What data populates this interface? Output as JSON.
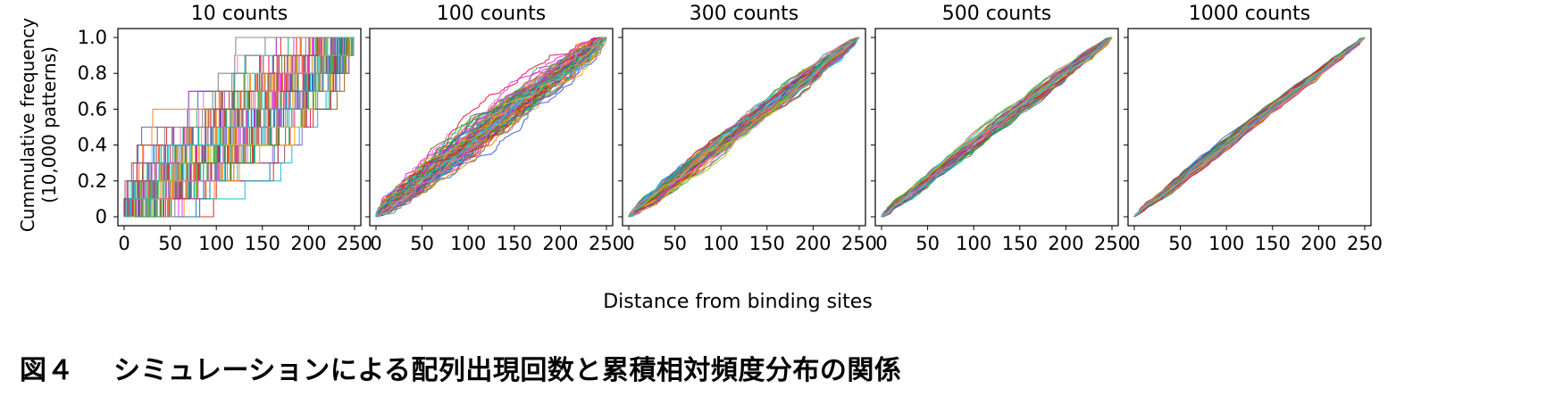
{
  "figure": {
    "ylabel_line1": "Cummulative frequency",
    "ylabel_line2": "(10,000 patterns)",
    "xlabel": "Distance from binding sites"
  },
  "caption": {
    "label": "図４",
    "text": "シミュレーションによる配列出現回数と累積相対頻度分布の関係"
  },
  "chart_data": [
    {
      "type": "line",
      "title": "10 counts",
      "counts": 10,
      "x_ticks": [
        0,
        50,
        100,
        150,
        200,
        250
      ],
      "y_ticks": [
        "0",
        "0.2",
        "0.4",
        "0.6",
        "0.8",
        "1.0"
      ],
      "xlim": [
        0,
        250
      ],
      "ylim": [
        0,
        1
      ],
      "show_y_tick_labels": true,
      "description_values": "step-like empirical CDFs of 10 random positions on 0-250; steps of 0.1"
    },
    {
      "type": "line",
      "title": "100 counts",
      "counts": 100,
      "x_ticks": [
        0,
        50,
        100,
        150,
        200,
        250
      ],
      "xlim": [
        0,
        250
      ],
      "ylim": [
        0,
        1
      ],
      "show_y_tick_labels": false
    },
    {
      "type": "line",
      "title": "300 counts",
      "counts": 300,
      "x_ticks": [
        0,
        50,
        100,
        150,
        200,
        250
      ],
      "xlim": [
        0,
        250
      ],
      "ylim": [
        0,
        1
      ],
      "show_y_tick_labels": false
    },
    {
      "type": "line",
      "title": "500 counts",
      "counts": 500,
      "x_ticks": [
        0,
        50,
        100,
        150,
        200,
        250
      ],
      "xlim": [
        0,
        250
      ],
      "ylim": [
        0,
        1
      ],
      "show_y_tick_labels": false
    },
    {
      "type": "line",
      "title": "1000 counts",
      "counts": 1000,
      "x_ticks": [
        0,
        50,
        100,
        150,
        200,
        250
      ],
      "xlim": [
        0,
        250
      ],
      "ylim": [
        0,
        1
      ],
      "show_y_tick_labels": false
    }
  ],
  "palette": [
    "#1f77b4",
    "#ff7f0e",
    "#2ca02c",
    "#d62728",
    "#9467bd",
    "#8c564b",
    "#e377c2",
    "#7f7f7f",
    "#bcbd22",
    "#17becf",
    "#f4a300",
    "#00a86b",
    "#e6194b",
    "#3cb44b",
    "#4363d8",
    "#f58231",
    "#911eb4",
    "#46f0f0",
    "#f032e6",
    "#9a6324"
  ]
}
